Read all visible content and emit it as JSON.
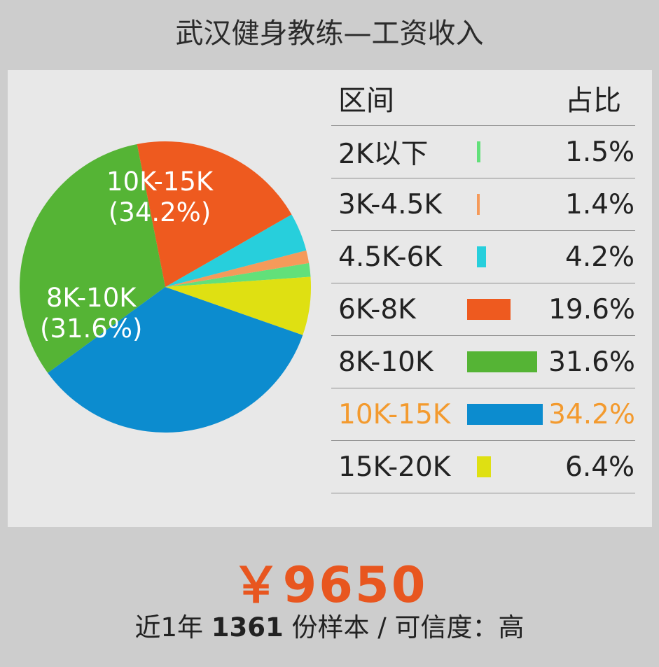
{
  "title": "武汉健身教练—工资收入",
  "chart_data": {
    "type": "pie",
    "categories": [
      "2K以下",
      "3K-4.5K",
      "4.5K-6K",
      "6K-8K",
      "8K-10K",
      "10K-15K",
      "15K-20K"
    ],
    "values": [
      1.5,
      1.4,
      4.2,
      19.6,
      31.6,
      34.2,
      6.4
    ],
    "value_labels": [
      "1.5%",
      "1.4%",
      "4.2%",
      "19.6%",
      "31.6%",
      "34.2%",
      "6.4%"
    ],
    "colors": [
      "#62e07a",
      "#f59a5a",
      "#27cfdc",
      "#ee5a1f",
      "#55b435",
      "#0c8ccf",
      "#dfe012"
    ],
    "slice_labels": {
      "s5": {
        "name": "10K-15K",
        "pct": "(34.2%)"
      },
      "s4": {
        "name": "8K-10K",
        "pct": "(31.6%)"
      }
    },
    "legend": {
      "header_range": "区间",
      "header_share": "占比",
      "highlight_index": 5,
      "highlight_color": "#f39a2e"
    }
  },
  "footer": {
    "price": "￥9650",
    "sample_prefix": "近1年",
    "sample_count": "1361",
    "sample_suffix": "份样本 / 可信度：高"
  }
}
